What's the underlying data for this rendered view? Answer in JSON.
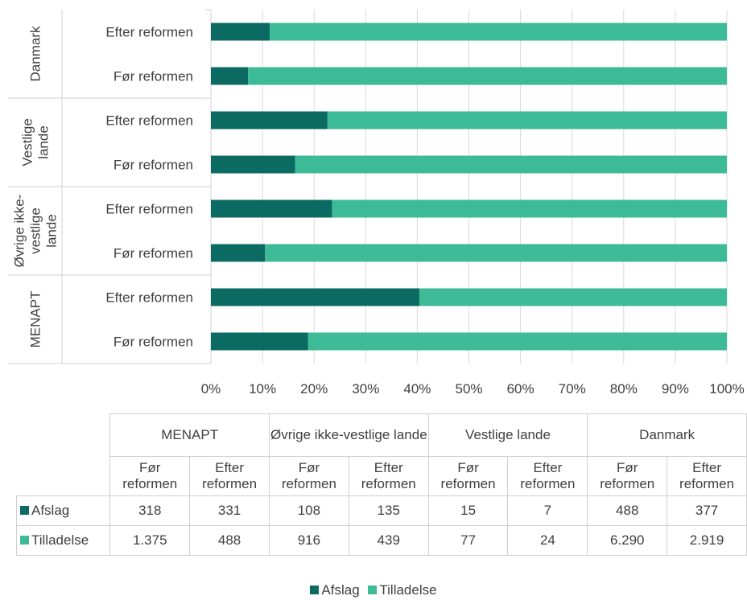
{
  "colors": {
    "afslag": "#0b6b63",
    "tilladelse": "#3dba96"
  },
  "chart_data": {
    "type": "bar",
    "orientation": "horizontal",
    "stacking": "percent",
    "groups": [
      {
        "label": "Danmark",
        "label_lines": [
          "Danmark"
        ],
        "bars": [
          {
            "label": "Efter reformen",
            "afslag": 11.4,
            "tilladelse": 88.6
          },
          {
            "label": "Før reformen",
            "afslag": 7.2,
            "tilladelse": 92.8
          }
        ]
      },
      {
        "label": "Vestlige lande",
        "label_lines": [
          "Vestlige",
          "lande"
        ],
        "bars": [
          {
            "label": "Efter reformen",
            "afslag": 22.6,
            "tilladelse": 77.4
          },
          {
            "label": "Før reformen",
            "afslag": 16.3,
            "tilladelse": 83.7
          }
        ]
      },
      {
        "label": "Øvrige ikke-vestlige lande",
        "label_lines": [
          "Øvrige ikke-",
          "vestlige",
          "lande"
        ],
        "bars": [
          {
            "label": "Efter reformen",
            "afslag": 23.5,
            "tilladelse": 76.5
          },
          {
            "label": "Før reformen",
            "afslag": 10.5,
            "tilladelse": 89.5
          }
        ]
      },
      {
        "label": "MENAPT",
        "label_lines": [
          "MENAPT"
        ],
        "bars": [
          {
            "label": "Efter reformen",
            "afslag": 40.4,
            "tilladelse": 59.6
          },
          {
            "label": "Før reformen",
            "afslag": 18.8,
            "tilladelse": 81.2
          }
        ]
      }
    ],
    "x_ticks": [
      "0%",
      "10%",
      "20%",
      "30%",
      "40%",
      "50%",
      "60%",
      "70%",
      "80%",
      "90%",
      "100%"
    ],
    "xlim": [
      0,
      100
    ],
    "grid": true,
    "legend": {
      "position": "bottom",
      "entries": [
        {
          "name": "Afslag",
          "color": "#0b6b63"
        },
        {
          "name": "Tilladelse",
          "color": "#3dba96"
        }
      ]
    }
  },
  "table": {
    "group_headers": [
      "MENAPT",
      "Øvrige ikke-vestlige lande",
      "Vestlige lande",
      "Danmark"
    ],
    "sub_headers": [
      "Før reformen",
      "Efter reformen",
      "Før reformen",
      "Efter reformen",
      "Før reformen",
      "Efter reformen",
      "Før reformen",
      "Efter reformen"
    ],
    "rows": [
      {
        "label": "Afslag",
        "values": [
          "318",
          "331",
          "108",
          "135",
          "15",
          "7",
          "488",
          "377"
        ]
      },
      {
        "label": "Tilladelse",
        "values": [
          "1.375",
          "488",
          "916",
          "439",
          "77",
          "24",
          "6.290",
          "2.919"
        ]
      }
    ]
  }
}
